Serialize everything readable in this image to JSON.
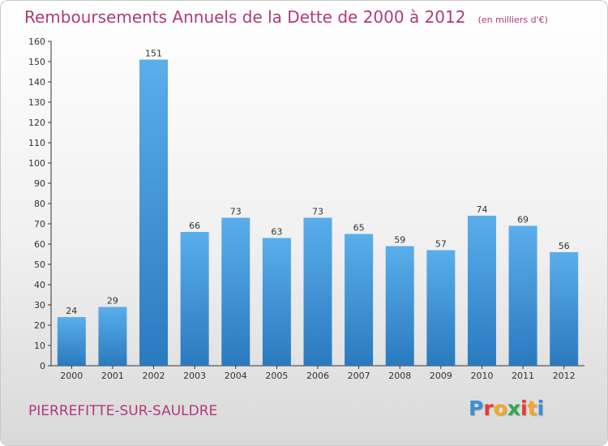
{
  "header": {
    "title": "Remboursements Annuels de la Dette de 2000 à 2012",
    "unit": "(en milliers d'€)"
  },
  "footer": {
    "commune": "PIERREFITTE-SUR-SAULDRE",
    "brand": "Proxiti",
    "brand_colors": [
      "#3a8fd8",
      "#e83a2f",
      "#f5a623",
      "#2fa84f",
      "#e83a2f",
      "#f5a623",
      "#3a8fd8"
    ]
  },
  "colors": {
    "bar_light": "#5aaeea",
    "bar_dark": "#2a7ac0",
    "accent_text": "#b03a7a"
  },
  "chart_data": {
    "type": "bar",
    "title": "Remboursements Annuels de la Dette de 2000 à 2012",
    "subtitle": "(en milliers d'€)",
    "xlabel": "",
    "ylabel": "",
    "categories": [
      "2000",
      "2001",
      "2002",
      "2003",
      "2004",
      "2005",
      "2006",
      "2007",
      "2008",
      "2009",
      "2010",
      "2011",
      "2012"
    ],
    "values": [
      24,
      29,
      151,
      66,
      73,
      63,
      73,
      65,
      59,
      57,
      74,
      69,
      56
    ],
    "ylim": [
      0,
      160
    ],
    "yticks": [
      0,
      10,
      20,
      30,
      40,
      50,
      60,
      70,
      80,
      90,
      100,
      110,
      120,
      130,
      140,
      150,
      160
    ],
    "grid": false,
    "legend": "none"
  }
}
